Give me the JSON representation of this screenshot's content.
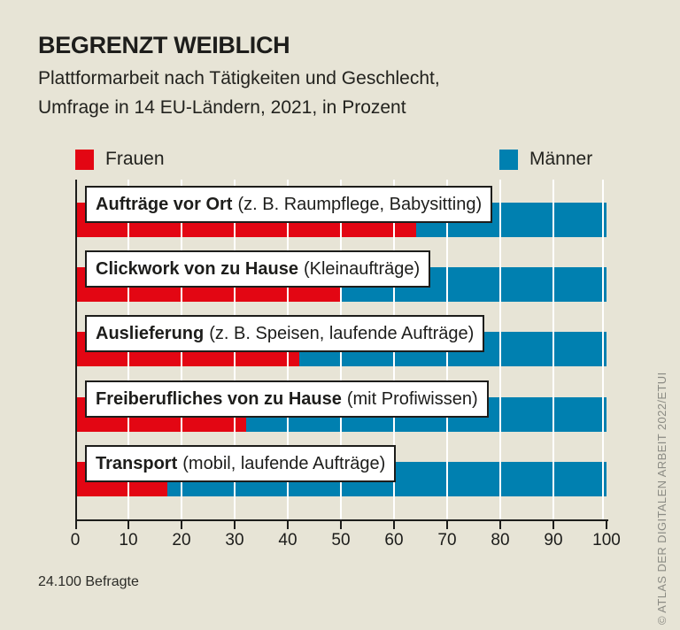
{
  "header": {
    "title": "BEGRENZT WEIBLICH",
    "subtitle_line1": "Plattformarbeit nach Tätigkeiten und Geschlecht,",
    "subtitle_line2": "Umfrage in 14 EU-Ländern, 2021, in Prozent"
  },
  "legend": {
    "frauen_label": "Frauen",
    "maenner_label": "Männer"
  },
  "colors": {
    "frauen": "#e30613",
    "maenner": "#0080b0",
    "background": "#e7e4d6",
    "gridline": "#ffffff",
    "axis": "#1d1d1b",
    "label_box_bg": "#ffffff",
    "copyright_text": "#8b8b84"
  },
  "footer": {
    "sample_note": "24.100 Befragte",
    "copyright": "© ATLAS DER DIGITALEN ARBEIT 2022/ETUI"
  },
  "chart_data": {
    "type": "bar",
    "orientation": "horizontal",
    "stacked": true,
    "unit": "percent",
    "xlim": [
      0,
      100
    ],
    "xticks": [
      0,
      10,
      20,
      30,
      40,
      50,
      60,
      70,
      80,
      90,
      100
    ],
    "grid": true,
    "legend_position": "top",
    "categories": [
      {
        "label": "Aufträge vor Ort",
        "note": "(z. B. Raumpflege, Babysitting)"
      },
      {
        "label": "Clickwork von zu Hause",
        "note": "(Kleinaufträge)"
      },
      {
        "label": "Auslieferung",
        "note": "(z. B. Speisen, laufende Aufträge)"
      },
      {
        "label": "Freiberufliches von zu Hause",
        "note": "(mit Profiwissen)"
      },
      {
        "label": "Transport",
        "note": "(mobil, laufende Aufträge)"
      }
    ],
    "series": [
      {
        "name": "Frauen",
        "color": "#e30613",
        "values": [
          64,
          50,
          42,
          32,
          17
        ]
      },
      {
        "name": "Männer",
        "color": "#0080b0",
        "values": [
          36,
          50,
          58,
          68,
          83
        ]
      }
    ]
  }
}
